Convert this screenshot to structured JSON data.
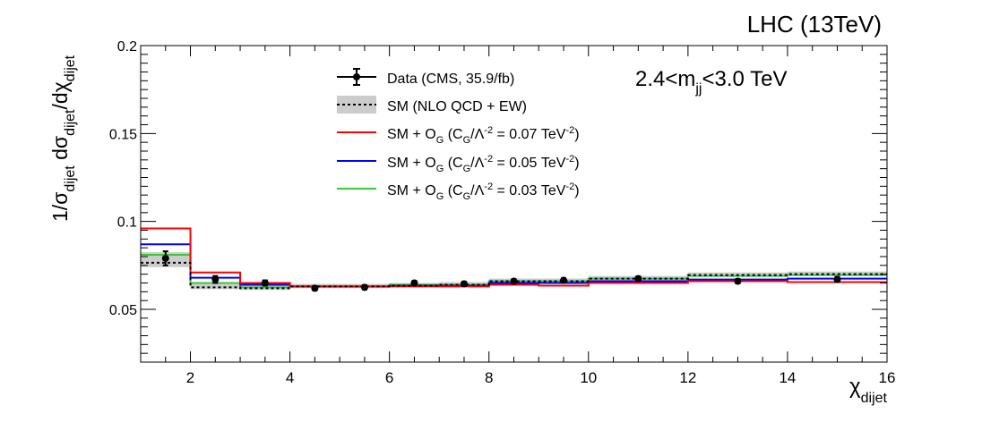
{
  "chart_data": {
    "type": "step",
    "header_label": "LHC (13TeV)",
    "region_label": {
      "base": "2.4<m",
      "sub": "jj",
      "tail": "<3.0 TeV"
    },
    "xlabel": {
      "base": "χ",
      "sub": "dijet"
    },
    "ylabel": {
      "t1": "1/σ",
      "s1": "dijet",
      "t2": " dσ",
      "s2": "dijet",
      "t3": "/dχ",
      "s3": "dijet"
    },
    "xlim": [
      1,
      16
    ],
    "ylim": [
      0.02,
      0.2
    ],
    "x_ticks": [
      2,
      4,
      6,
      8,
      10,
      12,
      14,
      16
    ],
    "y_ticks": [
      0.05,
      0.1,
      0.15,
      0.2
    ],
    "bin_edges": [
      1,
      2,
      3,
      4,
      5,
      6,
      7,
      8,
      9,
      10,
      12,
      14,
      16
    ],
    "data": {
      "name": "Data (CMS, 35.9/fb)",
      "x": [
        1.5,
        2.5,
        3.5,
        4.5,
        5.5,
        6.5,
        7.5,
        8.5,
        9.5,
        11,
        13,
        15
      ],
      "y": [
        0.079,
        0.067,
        0.065,
        0.062,
        0.0625,
        0.065,
        0.0645,
        0.066,
        0.0665,
        0.0675,
        0.066,
        0.067
      ],
      "err": [
        0.004,
        0.002,
        0.0015,
        0.0012,
        0.0012,
        0.0012,
        0.0012,
        0.0012,
        0.0012,
        0.0012,
        0.0012,
        0.0015
      ]
    },
    "sm": {
      "name": "SM (NLO QCD + EW)",
      "values": [
        0.0765,
        0.0625,
        0.062,
        0.063,
        0.063,
        0.0635,
        0.064,
        0.066,
        0.066,
        0.0675,
        0.0695,
        0.07
      ],
      "band_low": [
        0.074,
        0.0615,
        0.061,
        0.062,
        0.062,
        0.0625,
        0.063,
        0.065,
        0.065,
        0.0665,
        0.0685,
        0.069
      ],
      "band_high": [
        0.0825,
        0.0645,
        0.0635,
        0.0645,
        0.0645,
        0.065,
        0.0655,
        0.0675,
        0.0675,
        0.069,
        0.071,
        0.0715
      ]
    },
    "series": [
      {
        "name": "SM + O",
        "sub": "G",
        "mid": " (C",
        "sub2": "G",
        "mid2": "/Λ",
        "sup": "-2",
        "tail": " = 0.07 TeV",
        "sup2": "-2",
        "tail2": ")",
        "color": "#ff0000",
        "values": [
          0.096,
          0.071,
          0.065,
          0.063,
          0.063,
          0.063,
          0.063,
          0.064,
          0.0635,
          0.065,
          0.066,
          0.0655
        ]
      },
      {
        "name": "SM + O",
        "sub": "G",
        "mid": " (C",
        "sub2": "G",
        "mid2": "/Λ",
        "sup": "-2",
        "tail": " = 0.05 TeV",
        "sup2": "-2",
        "tail2": ")",
        "color": "#0000ff",
        "values": [
          0.087,
          0.068,
          0.064,
          0.063,
          0.063,
          0.0635,
          0.0635,
          0.065,
          0.065,
          0.066,
          0.067,
          0.0675
        ]
      },
      {
        "name": "SM + O",
        "sub": "G",
        "mid": " (C",
        "sub2": "G",
        "mid2": "/Λ",
        "sup": "-2",
        "tail": " = 0.03 TeV",
        "sup2": "-2",
        "tail2": ")",
        "color": "#33cc33",
        "values": [
          0.081,
          0.065,
          0.0625,
          0.063,
          0.063,
          0.064,
          0.064,
          0.066,
          0.066,
          0.0675,
          0.069,
          0.0695
        ]
      }
    ],
    "legend_position": "top-center"
  }
}
